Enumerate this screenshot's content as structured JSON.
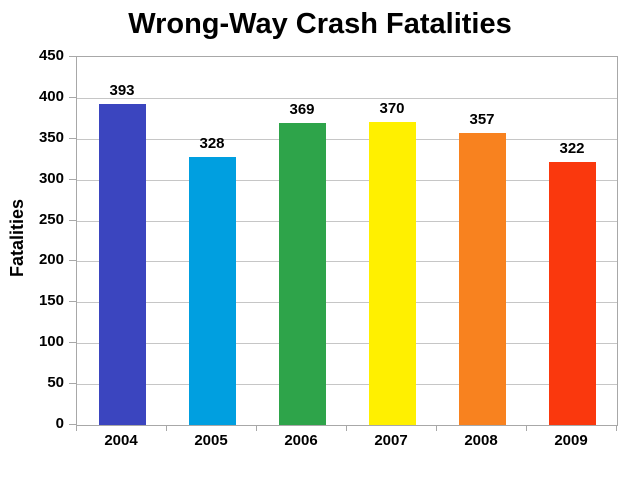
{
  "title": "Wrong-Way Crash Fatalities",
  "chart_data": {
    "type": "bar",
    "title": "Wrong-Way Crash Fatalities",
    "categories": [
      "2004",
      "2005",
      "2006",
      "2007",
      "2008",
      "2009"
    ],
    "values": [
      393,
      328,
      369,
      370,
      357,
      322
    ],
    "bar_colors": [
      "#3B45BF",
      "#009FE0",
      "#2EA44A",
      "#FFF000",
      "#F8821F",
      "#FA380D"
    ],
    "xlabel": "",
    "ylabel": "Fatalities",
    "ylim": [
      0,
      450
    ],
    "ytick_step": 50,
    "grid": true,
    "legend": "none",
    "gridline_color": "#C6C6C6",
    "axis_color": "#A8A8A8",
    "text_color": "#000000",
    "background_color": "#FFFFFF"
  }
}
